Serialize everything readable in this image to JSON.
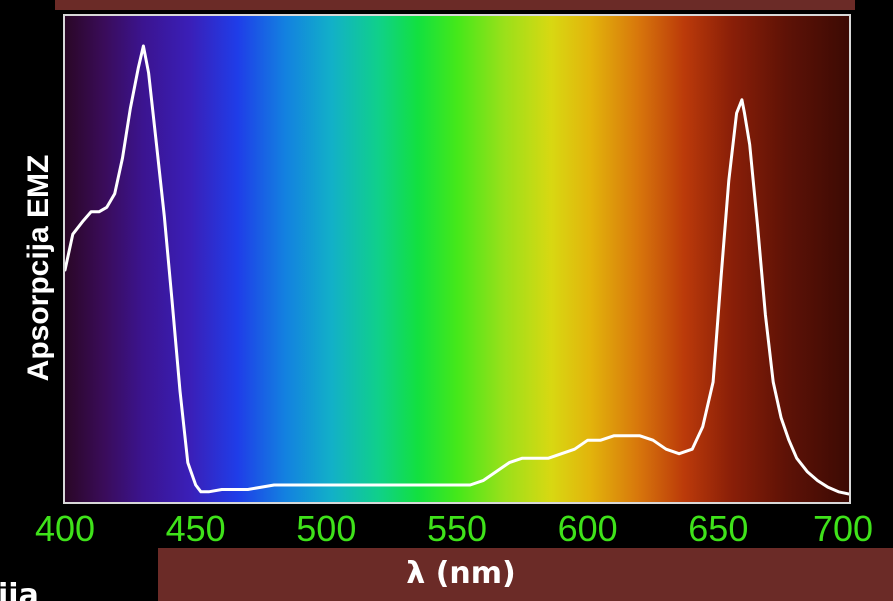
{
  "title": {
    "text": ""
  },
  "corner_text": "ija",
  "chart_data": {
    "type": "line",
    "xlabel": "λ (nm)",
    "ylabel": "Apsorpcija EMZ",
    "xlim": [
      400,
      700
    ],
    "ylim": [
      0,
      1
    ],
    "x_ticks": [
      "400",
      "450",
      "500",
      "550",
      "600",
      "650",
      "700"
    ],
    "grid": false,
    "background": "visible spectrum gradient",
    "line_color": "#ffffff",
    "tick_color": "#3fe21a",
    "series": [
      {
        "x": [
          400,
          403,
          407,
          410,
          413,
          416,
          419,
          422,
          425,
          428,
          430,
          432,
          435,
          438,
          441,
          444,
          447,
          450,
          452,
          455,
          460,
          470,
          480,
          500,
          520,
          540,
          555,
          560,
          565,
          570,
          575,
          580,
          585,
          590,
          595,
          600,
          605,
          610,
          615,
          620,
          625,
          630,
          635,
          640,
          644,
          648,
          651,
          654,
          657,
          659,
          660,
          662,
          665,
          668,
          671,
          674,
          677,
          680,
          684,
          688,
          692,
          696,
          700
        ],
        "y": [
          0.5,
          0.58,
          0.61,
          0.63,
          0.63,
          0.64,
          0.67,
          0.75,
          0.86,
          0.95,
          1.0,
          0.94,
          0.78,
          0.62,
          0.43,
          0.23,
          0.07,
          0.02,
          0.005,
          0.005,
          0.01,
          0.01,
          0.02,
          0.02,
          0.02,
          0.02,
          0.02,
          0.03,
          0.05,
          0.07,
          0.08,
          0.08,
          0.08,
          0.09,
          0.1,
          0.12,
          0.12,
          0.13,
          0.13,
          0.13,
          0.12,
          0.1,
          0.09,
          0.1,
          0.15,
          0.25,
          0.48,
          0.7,
          0.85,
          0.88,
          0.85,
          0.78,
          0.6,
          0.4,
          0.25,
          0.17,
          0.12,
          0.08,
          0.05,
          0.03,
          0.015,
          0.005,
          0.0
        ]
      }
    ]
  }
}
